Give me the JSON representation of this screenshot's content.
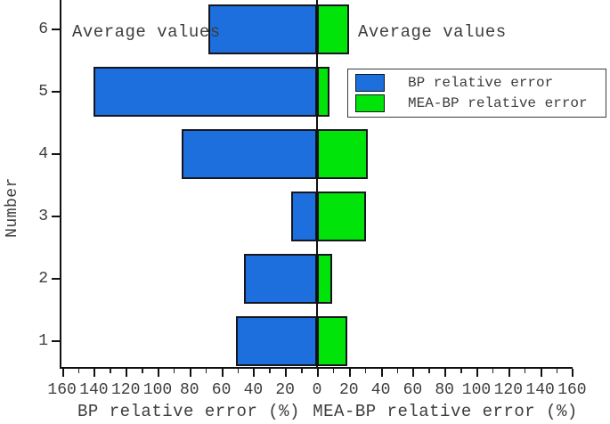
{
  "chart_data": {
    "type": "bar",
    "orientation": "horizontal-diverging",
    "ylabel": "Number",
    "xlabel_left": "BP relative error (%)",
    "xlabel_right": "MEA-BP relative error (%)",
    "categories": [
      1,
      2,
      3,
      4,
      5,
      6
    ],
    "series": [
      {
        "name": "BP relative error",
        "side": "left",
        "color": "#1c6fdd",
        "values": [
          51,
          46,
          16,
          85,
          140,
          68
        ]
      },
      {
        "name": "MEA-BP relative error",
        "side": "right",
        "color": "#00e40a",
        "values": [
          19,
          9.5,
          31,
          32,
          8,
          20
        ]
      }
    ],
    "x_axis": {
      "max_each_side": 160,
      "major_tick_step": 20,
      "minor_tick_step": 10,
      "left_tick_labels": [
        "160",
        "140",
        "120",
        "100",
        "80",
        "60",
        "40",
        "20"
      ],
      "center_tick_label": "0",
      "right_tick_labels": [
        "20",
        "40",
        "60",
        "80",
        "100",
        "120",
        "140",
        "160"
      ]
    },
    "annotations": [
      {
        "text": "Average values",
        "side": "left"
      },
      {
        "text": "Average values",
        "side": "right"
      }
    ],
    "legend": {
      "entries": [
        {
          "label": "BP relative error",
          "color": "#1c6fdd"
        },
        {
          "label": "MEA-BP relative error",
          "color": "#00e40a"
        }
      ]
    },
    "grid": false,
    "legend_position": "upper-right"
  }
}
